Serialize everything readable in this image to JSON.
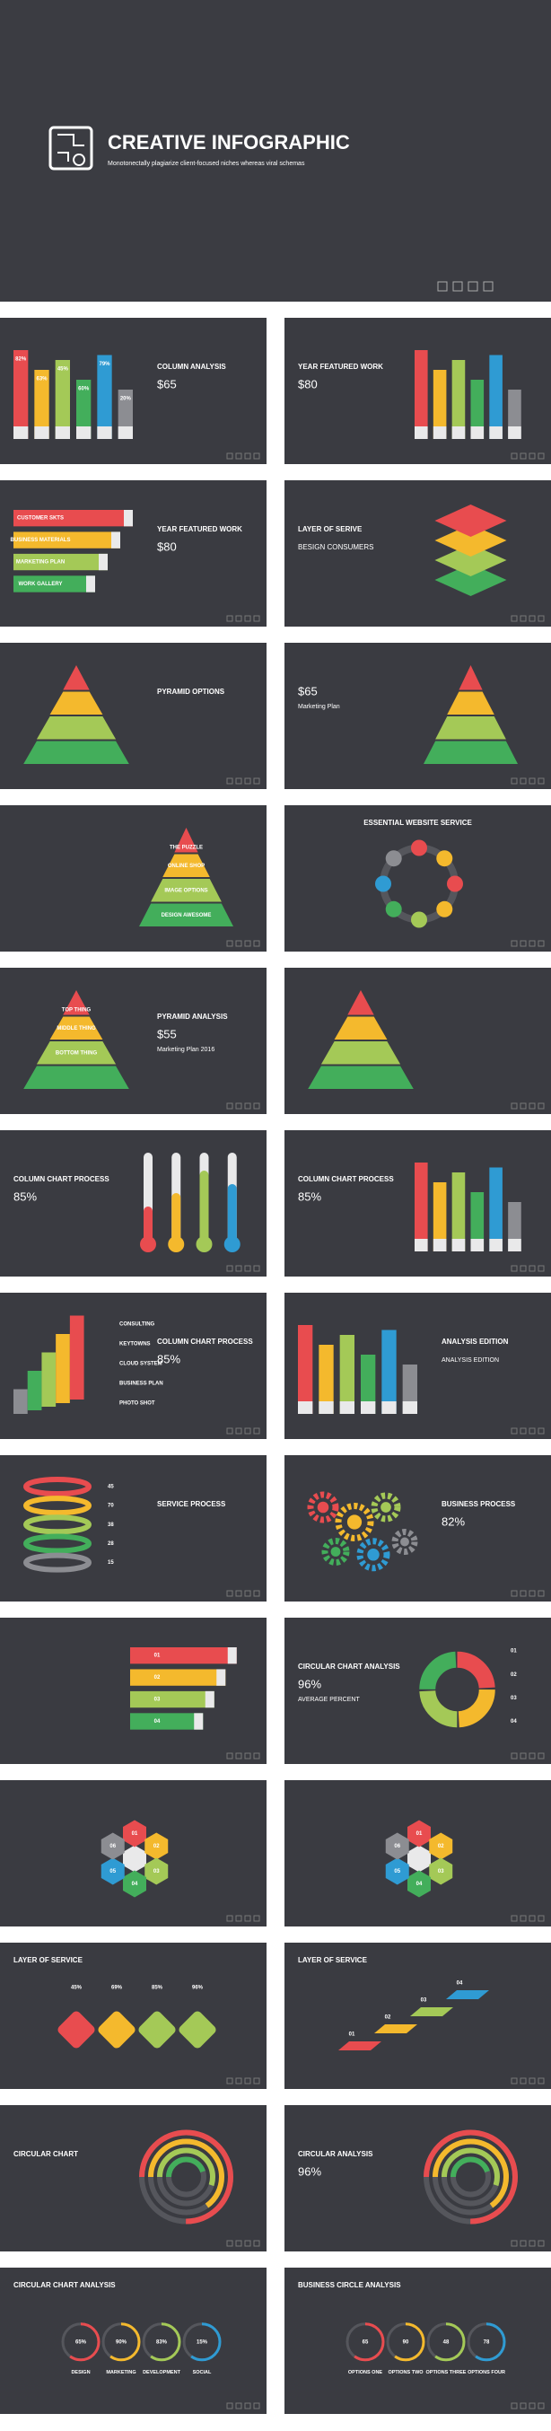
{
  "header": {
    "title": "CREATIVE INFOGRAPHIC",
    "subtitle": "Monotonectally plagiarize client-focused niches whereas viral schemas"
  },
  "slides": [
    {
      "title": "COLUMN ANALYSIS",
      "stat": "$65",
      "labels": [
        "82%",
        "63%",
        "45%",
        "60%",
        "79%",
        "20%"
      ]
    },
    {
      "title": "YEAR FEATURED WORK",
      "stat": "$80"
    },
    {
      "title": "YEAR FEATURED WORK",
      "stat": "$80",
      "labels": [
        "CUSTOMER SKTS",
        "BUSINESS MATERIALS",
        "MARKETING PLAN",
        "WORK GALLERY"
      ]
    },
    {
      "title": "LAYER OF SERIVE",
      "stat": "BESIGN CONSUMERS"
    },
    {
      "title": "PYRAMID OPTIONS"
    },
    {
      "stat": "$65",
      "caption": "Marketing Plan"
    },
    {
      "labels": [
        "THE PUZZLE",
        "ONLINE SHOP",
        "IMAGE OPTIONS",
        "DESIGN AWESOME"
      ]
    },
    {
      "title": "ESSENTIAL WEBSITE SERVICE"
    },
    {
      "title": "PYRAMID ANALYSIS",
      "stat": "$55",
      "caption": "Marketing Plan 2016",
      "labels": [
        "TOP THING",
        "MIDDLE THING",
        "BOTTOM THING"
      ]
    },
    {},
    {
      "title": "COLUMN CHART PROCESS",
      "stat": "85%"
    },
    {
      "title": "COLUMN CHART PROCESS",
      "stat": "85%"
    },
    {
      "title": "COLUMN CHART PROCESS",
      "stat": "85%",
      "labels": [
        "CONSULTING",
        "KEYTOWNS",
        "CLOUD SYSTEM",
        "BUSINESS PLAN",
        "PHOTO SHOT"
      ]
    },
    {
      "title": "ANALYSIS EDITION",
      "caption": "ANALYSIS EDITION"
    },
    {
      "title": "SERVICE PROCESS",
      "labels": [
        "45",
        "70",
        "38",
        "28",
        "15"
      ]
    },
    {
      "title": "BUSINESS PROCESS",
      "stat": "82%"
    },
    {
      "labels": [
        "01",
        "02",
        "03",
        "04"
      ]
    },
    {
      "title": "CIRCULAR CHART ANALYSIS",
      "stat": "96%",
      "caption": "AVERAGE PERCENT",
      "labels": [
        "01",
        "02",
        "03",
        "04"
      ]
    },
    {
      "labels": [
        "01",
        "02",
        "03",
        "04",
        "05",
        "06"
      ]
    },
    {
      "labels": [
        "01",
        "02",
        "03",
        "04",
        "05",
        "06"
      ]
    },
    {
      "title": "LAYER OF SERVICE",
      "labels": [
        "45%",
        "69%",
        "85%",
        "96%"
      ]
    },
    {
      "title": "LAYER OF SERVICE",
      "labels": [
        "01",
        "02",
        "03",
        "04"
      ]
    },
    {
      "title": "CIRCULAR CHART"
    },
    {
      "title": "CIRCULAR ANALYSIS",
      "stat": "96%"
    },
    {
      "title": "CIRCULAR CHART ANALYSIS",
      "labels": [
        "65%",
        "90%",
        "83%",
        "15%"
      ],
      "names": [
        "DESIGN",
        "MARKETING",
        "DEVELOPMENT",
        "SOCIAL"
      ]
    },
    {
      "title": "BUSINESS CIRCLE ANALYSIS",
      "labels": [
        "65",
        "90",
        "48",
        "78"
      ],
      "names": [
        "OPTIONS ONE",
        "OPTIONS TWO",
        "OPTIONS THREE",
        "OPTIONS FOUR"
      ]
    }
  ]
}
